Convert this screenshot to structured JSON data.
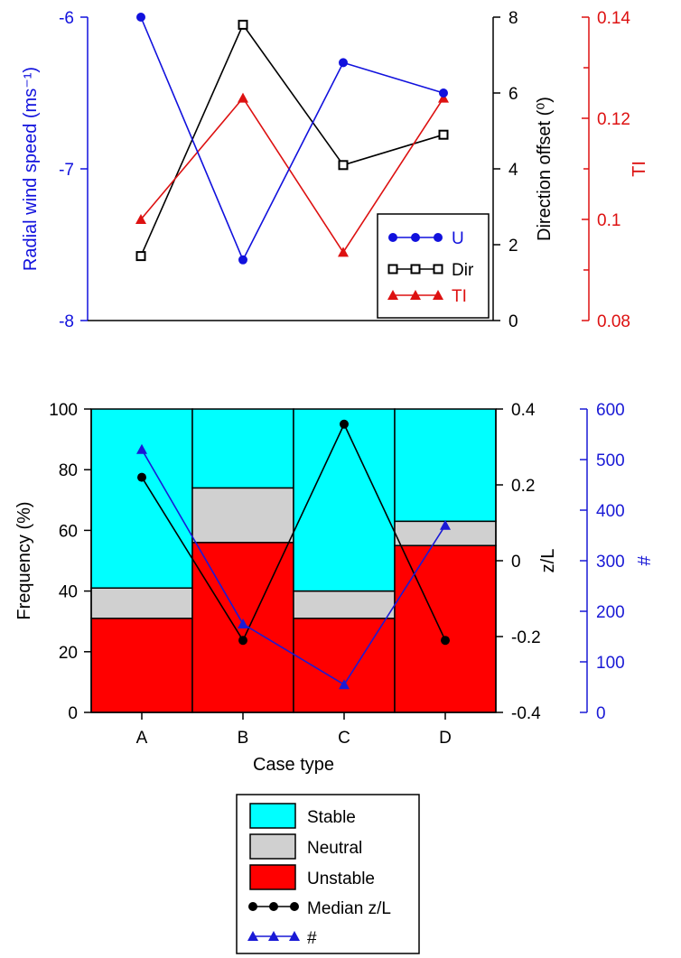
{
  "colors": {
    "u": "#1111dd",
    "dir": "#000000",
    "ti": "#dd1111",
    "stable": "#00ffff",
    "neutral": "#d0d0d0",
    "unstable": "#ff0000",
    "median": "#000000",
    "count": "#1a1ad6"
  },
  "chart_data": [
    {
      "type": "line",
      "x": [
        "A",
        "B",
        "C",
        "D"
      ],
      "series": [
        {
          "name": "U",
          "axis": "left",
          "values": [
            -6.0,
            -7.6,
            -6.3,
            -6.5
          ]
        },
        {
          "name": "Dir",
          "axis": "right1",
          "values": [
            1.7,
            7.8,
            4.1,
            4.9
          ]
        },
        {
          "name": "TI",
          "axis": "right2",
          "values": [
            0.1,
            0.124,
            0.0935,
            0.124
          ]
        }
      ],
      "axes": {
        "left": {
          "label": "Radial wind speed (ms⁻¹)",
          "range": [
            -8,
            -6
          ],
          "ticks": [
            -8,
            -7,
            -6
          ],
          "tick_labels": [
            "-8",
            "-7",
            "-6"
          ]
        },
        "right1": {
          "label": "Direction offset (⁰)",
          "range": [
            0,
            8
          ],
          "ticks": [
            0,
            2,
            4,
            6,
            8
          ],
          "tick_labels": [
            "0",
            "2",
            "4",
            "6",
            "8"
          ]
        },
        "right2": {
          "label": "TI",
          "range": [
            0.08,
            0.14
          ],
          "ticks": [
            0.08,
            0.1,
            0.12,
            0.14
          ],
          "tick_labels": [
            "0.08",
            "0.1",
            "0.12",
            "0.14"
          ],
          "minor_ticks": [
            0.09,
            0.11,
            0.13
          ]
        }
      },
      "legend": {
        "placement": "bottom-right",
        "entries": [
          "U",
          "Dir",
          "TI"
        ]
      },
      "grid": false
    },
    {
      "type": "bar",
      "stacked": true,
      "categories": [
        "A",
        "B",
        "C",
        "D"
      ],
      "xlabel": "Case type",
      "series": [
        {
          "name": "Unstable",
          "values": [
            31,
            56,
            31,
            55
          ]
        },
        {
          "name": "Neutral",
          "values": [
            10,
            18,
            9,
            8
          ]
        },
        {
          "name": "Stable",
          "values": [
            59,
            26,
            60,
            37
          ]
        }
      ],
      "lines": [
        {
          "name": "Median z/L",
          "axis": "right1",
          "values": [
            0.22,
            -0.21,
            0.36,
            -0.21
          ]
        },
        {
          "name": "#",
          "axis": "right2",
          "values": [
            520,
            175,
            55,
            370
          ]
        }
      ],
      "axes": {
        "left": {
          "label": "Frequency (%)",
          "range": [
            0,
            100
          ],
          "ticks": [
            0,
            20,
            40,
            60,
            80,
            100
          ],
          "tick_labels": [
            "0",
            "20",
            "40",
            "60",
            "80",
            "100"
          ]
        },
        "right1": {
          "label": "z/L",
          "range": [
            -0.4,
            0.4
          ],
          "ticks": [
            -0.4,
            -0.2,
            0,
            0.2,
            0.4
          ],
          "tick_labels": [
            "-0.4",
            "-0.2",
            "0",
            "0.2",
            "0.4"
          ]
        },
        "right2": {
          "label": "#",
          "range": [
            0,
            600
          ],
          "ticks": [
            0,
            100,
            200,
            300,
            400,
            500,
            600
          ],
          "tick_labels": [
            "0",
            "100",
            "200",
            "300",
            "400",
            "500",
            "600"
          ]
        }
      },
      "legend": {
        "placement": "bottom",
        "entries": [
          "Stable",
          "Neutral",
          "Unstable",
          "Median z/L",
          "#"
        ]
      },
      "grid": false
    }
  ]
}
